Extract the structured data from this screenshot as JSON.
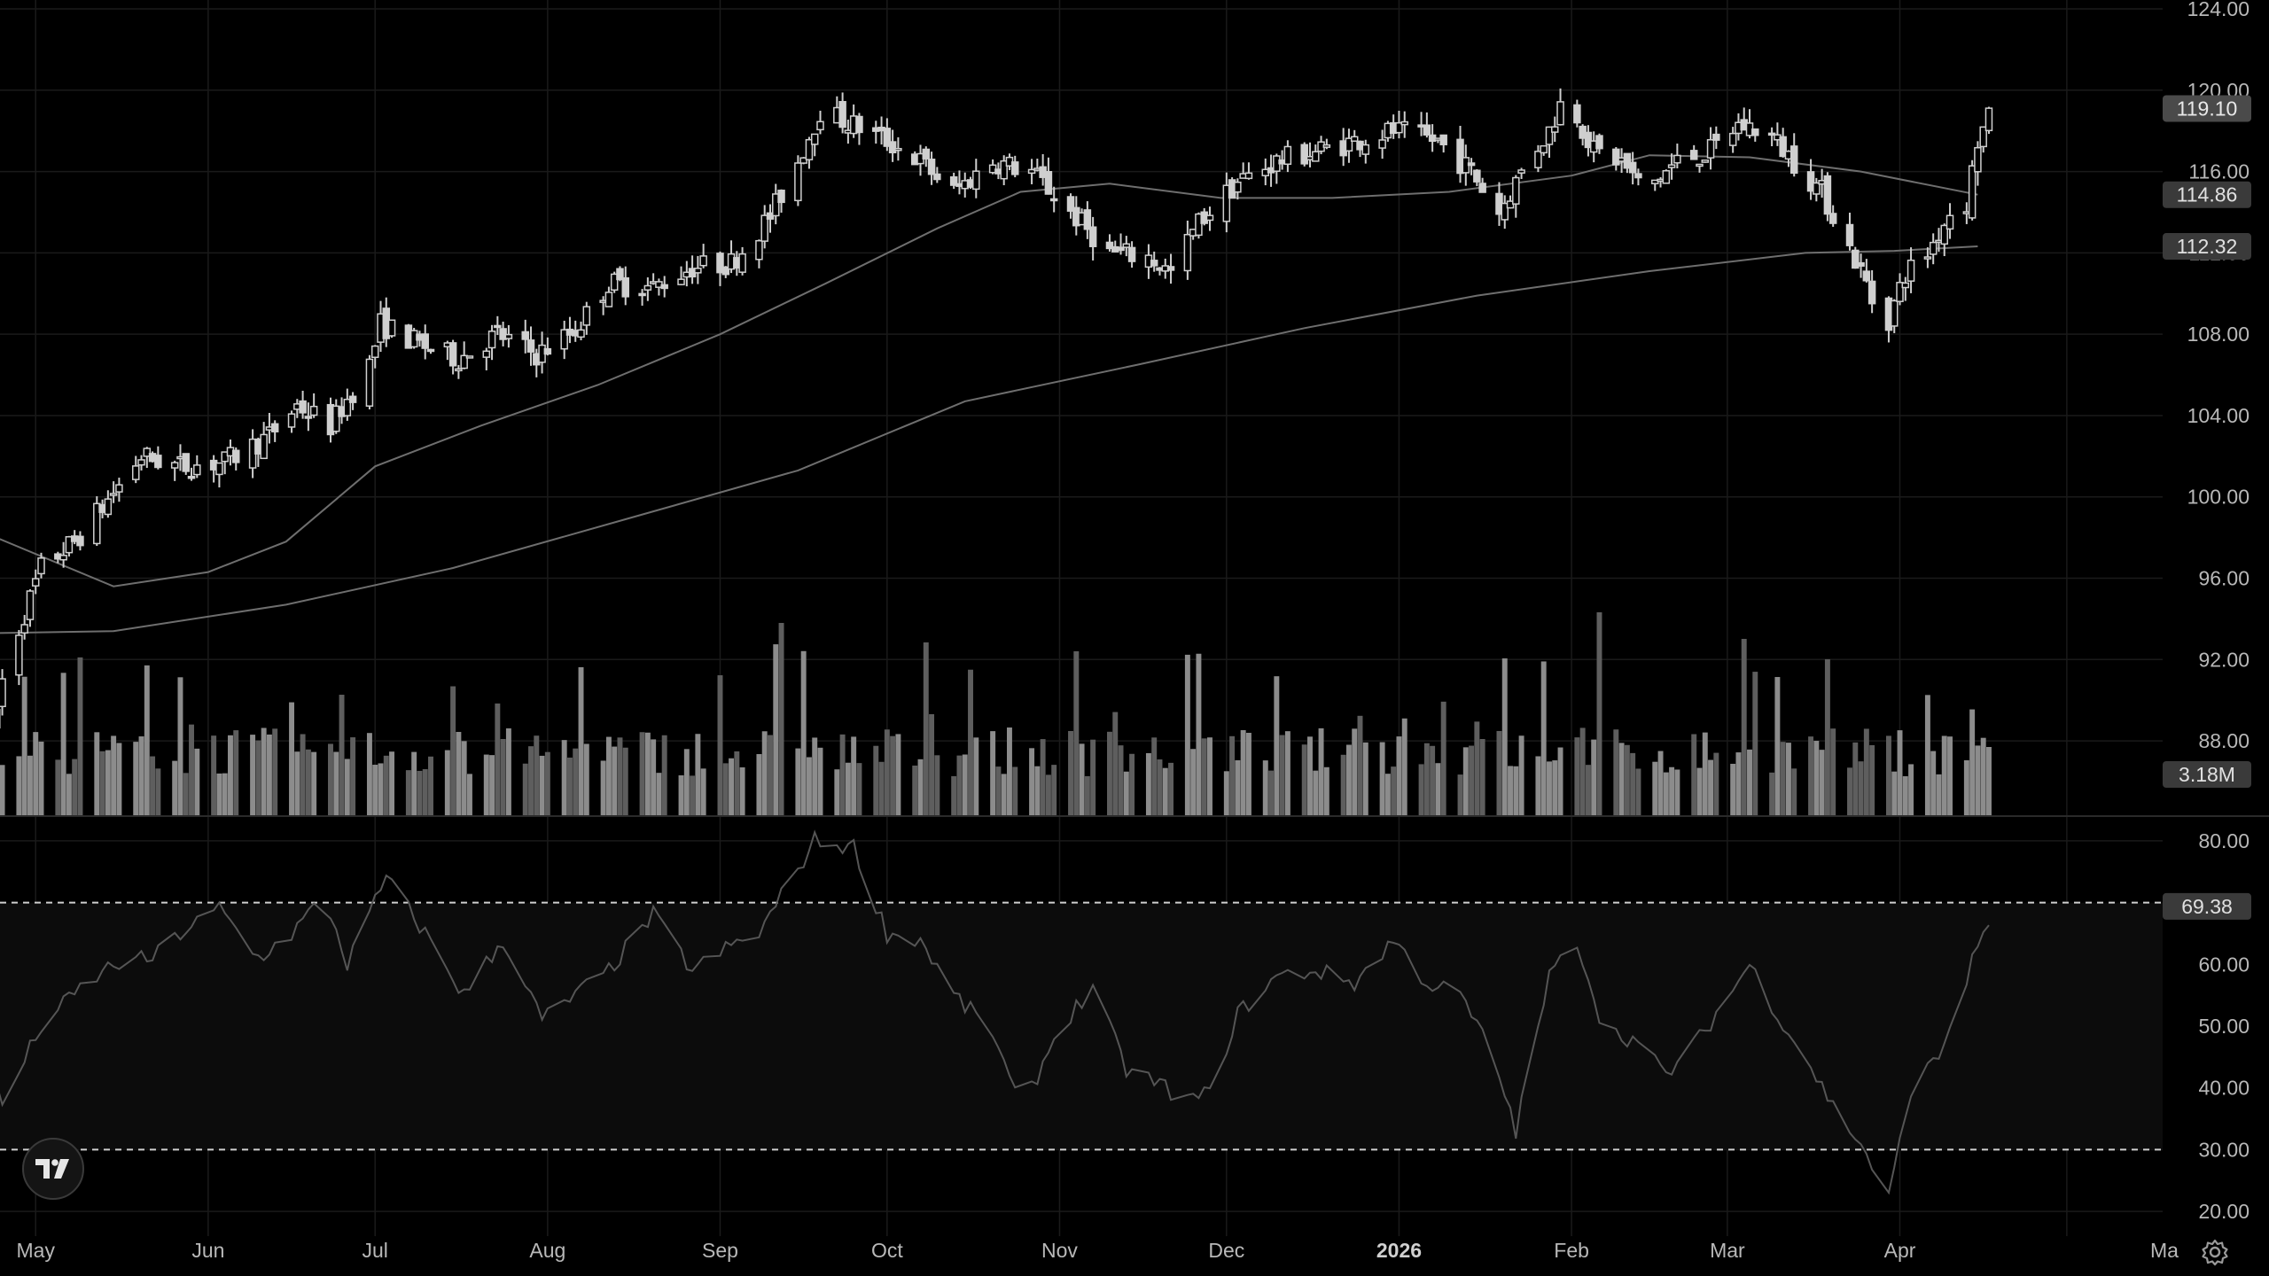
{
  "chart_data": [
    {
      "type": "candlestick",
      "title": "",
      "price_axis": {
        "ticks": [
          "124.00",
          "120.00",
          "116.00",
          "112.00",
          "108.00",
          "104.00",
          "100.00",
          "96.00",
          "92.00",
          "88.00"
        ],
        "range": [
          84.3,
          124.0
        ]
      },
      "time_axis": {
        "labels": [
          "May",
          "Jun",
          "Jul",
          "Aug",
          "Sep",
          "Oct",
          "Nov",
          "Dec",
          "2026",
          "Feb",
          "Mar",
          "Apr",
          "Ma"
        ],
        "range": [
          "2025-04-23",
          "2026-05-23"
        ]
      },
      "last_price": {
        "value": 119.1,
        "label": "119.10"
      },
      "moving_averages": [
        {
          "label": "114.86",
          "last": 114.86,
          "points": [
            [
              "2025-04-23",
              98.1
            ],
            [
              "2025-05-15",
              95.6
            ],
            [
              "2025-06-01",
              96.3
            ],
            [
              "2025-06-15",
              97.8
            ],
            [
              "2025-07-01",
              101.5
            ],
            [
              "2025-07-20",
              103.5
            ],
            [
              "2025-08-10",
              105.5
            ],
            [
              "2025-09-01",
              108.0
            ],
            [
              "2025-09-20",
              110.5
            ],
            [
              "2025-10-10",
              113.2
            ],
            [
              "2025-10-25",
              115.0
            ],
            [
              "2025-11-10",
              115.4
            ],
            [
              "2025-11-30",
              114.7
            ],
            [
              "2025-12-20",
              114.7
            ],
            [
              "2026-01-10",
              115.0
            ],
            [
              "2026-02-01",
              115.8
            ],
            [
              "2026-02-15",
              116.8
            ],
            [
              "2026-03-05",
              116.7
            ],
            [
              "2026-03-25",
              116.0
            ],
            [
              "2026-04-15",
              114.86
            ]
          ]
        },
        {
          "label": "112.32",
          "last": 112.32,
          "points": [
            [
              "2025-04-23",
              93.3
            ],
            [
              "2025-05-15",
              93.4
            ],
            [
              "2025-06-15",
              94.7
            ],
            [
              "2025-07-15",
              96.5
            ],
            [
              "2025-08-15",
              98.9
            ],
            [
              "2025-09-15",
              101.3
            ],
            [
              "2025-10-15",
              104.7
            ],
            [
              "2025-11-15",
              106.5
            ],
            [
              "2025-12-15",
              108.3
            ],
            [
              "2026-01-15",
              109.9
            ],
            [
              "2026-02-15",
              111.1
            ],
            [
              "2026-03-15",
              112.0
            ],
            [
              "2026-03-31",
              112.1
            ],
            [
              "2026-04-15",
              112.32
            ]
          ]
        }
      ]
    },
    {
      "type": "bar",
      "series_label": "3.18M",
      "last_value": 3.18,
      "unit": "M",
      "note": "volume histogram in lower band of price pane"
    },
    {
      "type": "line",
      "axis_ticks": [
        "80.00",
        "60.00",
        "50.00",
        "40.00",
        "30.00",
        "20.00"
      ],
      "range": [
        16,
        84
      ],
      "band": [
        30,
        70
      ],
      "last_value": {
        "value": 69.38,
        "label": "69.38"
      }
    }
  ],
  "colors": {
    "background": "#000000",
    "grid": "#1a1a1a",
    "candle_up": "#cfcfcf",
    "candle_down": "#cfcfcf",
    "ma_line": "#6e6e6e",
    "rsi_line": "#5a5a5a",
    "rsi_band": "#0d0d0d",
    "badge_bg": "#3a3a3a",
    "text": "#b8b8b8"
  },
  "icons": {
    "logo": "tradingview-logo-icon",
    "settings": "gear-icon"
  }
}
